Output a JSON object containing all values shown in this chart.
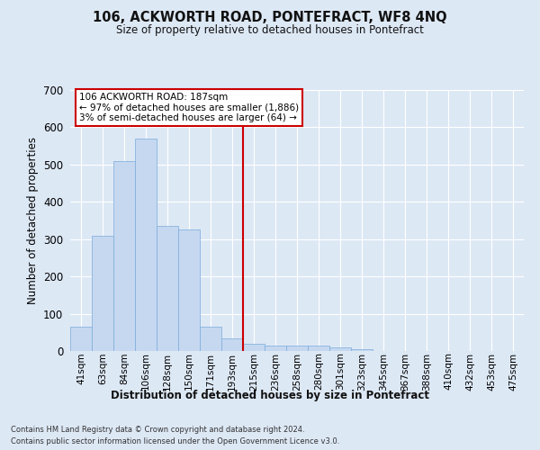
{
  "title": "106, ACKWORTH ROAD, PONTEFRACT, WF8 4NQ",
  "subtitle": "Size of property relative to detached houses in Pontefract",
  "xlabel": "Distribution of detached houses by size in Pontefract",
  "ylabel": "Number of detached properties",
  "bar_color": "#c5d8f0",
  "bar_edge_color": "#7aabda",
  "background_color": "#dde8f5",
  "grid_color": "#ffffff",
  "fig_background": "#dde8f5",
  "categories": [
    "41sqm",
    "63sqm",
    "84sqm",
    "106sqm",
    "128sqm",
    "150sqm",
    "171sqm",
    "193sqm",
    "215sqm",
    "236sqm",
    "258sqm",
    "280sqm",
    "301sqm",
    "323sqm",
    "345sqm",
    "367sqm",
    "388sqm",
    "410sqm",
    "432sqm",
    "453sqm",
    "475sqm"
  ],
  "values": [
    65,
    310,
    510,
    570,
    335,
    325,
    65,
    35,
    20,
    15,
    15,
    15,
    10,
    5,
    0,
    0,
    0,
    0,
    0,
    0,
    0
  ],
  "ylim": [
    0,
    700
  ],
  "yticks": [
    0,
    100,
    200,
    300,
    400,
    500,
    600,
    700
  ],
  "vline_index": 7.5,
  "vline_color": "#cc0000",
  "annotation_line1": "106 ACKWORTH ROAD: 187sqm",
  "annotation_line2": "← 97% of detached houses are smaller (1,886)",
  "annotation_line3": "3% of semi-detached houses are larger (64) →",
  "annotation_box_color": "#ffffff",
  "annotation_box_edge_color": "#cc0000",
  "footer_line1": "Contains HM Land Registry data © Crown copyright and database right 2024.",
  "footer_line2": "Contains public sector information licensed under the Open Government Licence v3.0."
}
